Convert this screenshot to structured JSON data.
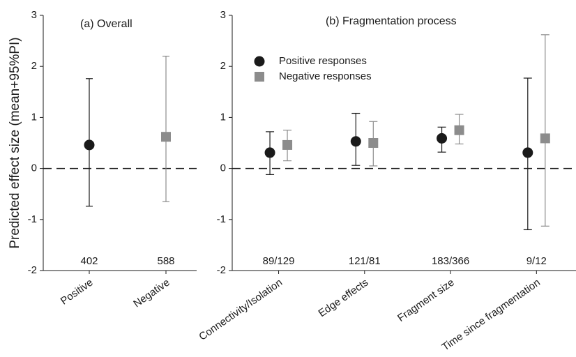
{
  "y_label": "Predicted effect  size (mean+95%PI)",
  "chart_data": [
    {
      "type": "errorbar",
      "title": "(a) Overall",
      "categories": [
        "Positive",
        "Negative"
      ],
      "values": [
        0.46,
        0.62
      ],
      "lower": [
        -0.74,
        -0.65
      ],
      "upper": [
        1.76,
        2.2
      ],
      "colors": [
        "#1a1a1a",
        "#8c8c8c"
      ],
      "markers": [
        "circle",
        "square"
      ],
      "sample_sizes": [
        "402",
        "588"
      ],
      "reference_line": 0,
      "ylim": [
        -2,
        3
      ],
      "yticks": [
        -2,
        -1,
        0,
        1,
        2,
        3
      ]
    },
    {
      "type": "errorbar",
      "title": "(b) Fragmentation process",
      "categories": [
        "Connectivity/Isolation",
        "Edge effects",
        "Fragment size",
        "Time since fragmentation"
      ],
      "series": [
        {
          "name": "Positive responses",
          "color": "#1a1a1a",
          "marker": "circle",
          "values": [
            0.31,
            0.53,
            0.59,
            0.31
          ],
          "lower": [
            -0.12,
            0.06,
            0.32,
            -1.2
          ],
          "upper": [
            0.72,
            1.08,
            0.81,
            1.77
          ]
        },
        {
          "name": "Negative responses",
          "color": "#8c8c8c",
          "marker": "square",
          "values": [
            0.46,
            0.5,
            0.75,
            0.59
          ],
          "lower": [
            0.15,
            0.05,
            0.48,
            -1.13
          ],
          "upper": [
            0.75,
            0.92,
            1.06,
            2.62
          ]
        }
      ],
      "sample_sizes": [
        "89/129",
        "121/81",
        "183/366",
        "9/12"
      ],
      "reference_line": 0,
      "ylim": [
        -2,
        3
      ],
      "yticks": [
        -2,
        -1,
        0,
        1,
        2,
        3
      ]
    }
  ]
}
